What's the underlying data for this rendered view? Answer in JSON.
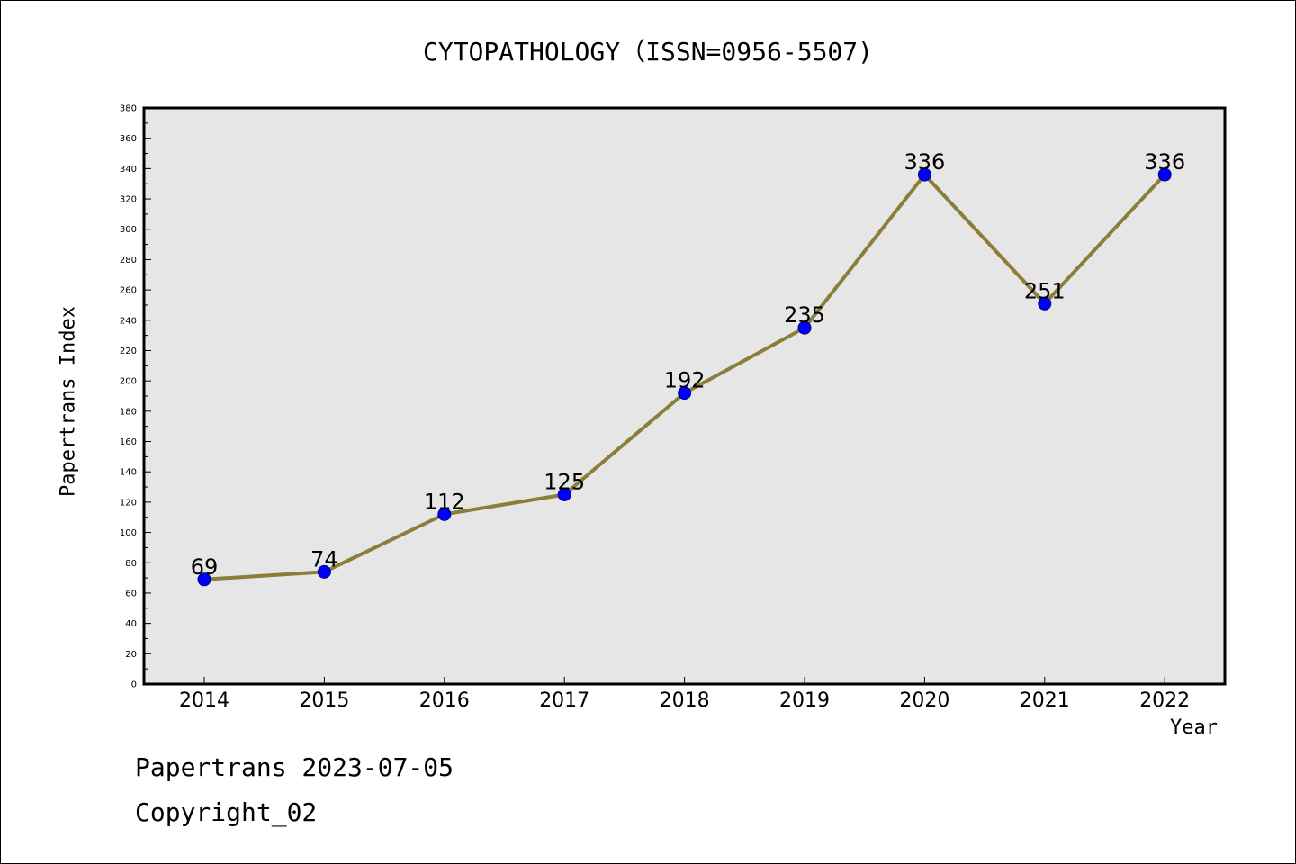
{
  "chart_data": {
    "type": "line",
    "title": "CYTOPATHOLOGY（ISSN=0956-5507)",
    "xlabel": "Year",
    "ylabel": "Papertrans Index",
    "categories": [
      "2014",
      "2015",
      "2016",
      "2017",
      "2018",
      "2019",
      "2020",
      "2021",
      "2022"
    ],
    "values": [
      69,
      74,
      112,
      125,
      192,
      235,
      336,
      251,
      336
    ],
    "ylim": [
      0,
      380
    ],
    "ytick_step": 20,
    "grid": false,
    "line_color": "#8B7D3A",
    "marker_color": "#0000FF",
    "plot_background": "#E6E6E6"
  },
  "footer": {
    "line1": "Papertrans 2023-07-05",
    "line2": "Copyright_02"
  }
}
